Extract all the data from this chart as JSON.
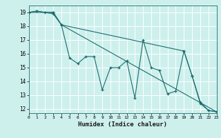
{
  "title": "",
  "xlabel": "Humidex (Indice chaleur)",
  "xlim": [
    0,
    23
  ],
  "ylim": [
    11.7,
    19.5
  ],
  "xticks": [
    0,
    1,
    2,
    3,
    4,
    5,
    6,
    7,
    8,
    9,
    10,
    11,
    12,
    13,
    14,
    15,
    16,
    17,
    18,
    19,
    20,
    21,
    22,
    23
  ],
  "yticks": [
    12,
    13,
    14,
    15,
    16,
    17,
    18,
    19
  ],
  "bg_color": "#cdf0ed",
  "grid_color": "#ffffff",
  "line_color": "#1a6b6b",
  "series": [
    [
      [
        0,
        19.0
      ],
      [
        1,
        19.1
      ],
      [
        3,
        18.9
      ],
      [
        4,
        18.1
      ],
      [
        5,
        15.7
      ],
      [
        6,
        15.3
      ],
      [
        7,
        15.8
      ],
      [
        8,
        15.8
      ],
      [
        9,
        13.4
      ],
      [
        10,
        15.0
      ],
      [
        11,
        15.0
      ],
      [
        12,
        15.5
      ],
      [
        13,
        12.8
      ],
      [
        14,
        17.0
      ],
      [
        15,
        15.0
      ],
      [
        16,
        14.8
      ],
      [
        17,
        13.1
      ],
      [
        18,
        13.3
      ],
      [
        19,
        16.2
      ],
      [
        20,
        14.4
      ],
      [
        21,
        12.5
      ],
      [
        22,
        11.9
      ],
      [
        23,
        11.8
      ]
    ],
    [
      [
        0,
        19.0
      ],
      [
        1,
        19.1
      ],
      [
        2,
        19.0
      ],
      [
        3,
        19.0
      ],
      [
        4,
        18.1
      ],
      [
        19,
        16.2
      ],
      [
        20,
        14.4
      ],
      [
        21,
        12.4
      ],
      [
        22,
        11.9
      ],
      [
        23,
        11.8
      ]
    ],
    [
      [
        0,
        19.0
      ],
      [
        3,
        19.0
      ],
      [
        4,
        18.1
      ],
      [
        23,
        11.8
      ]
    ]
  ]
}
